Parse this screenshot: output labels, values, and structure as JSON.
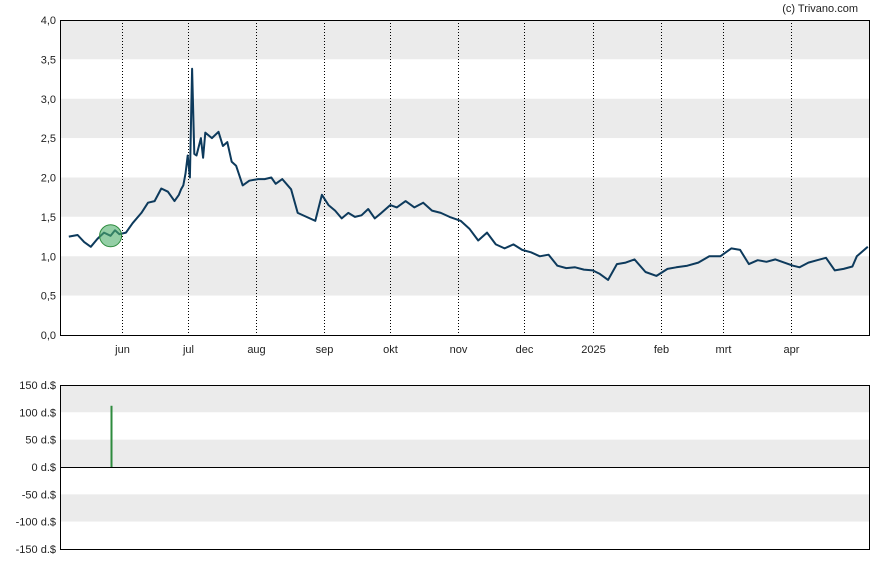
{
  "credit": "(c) Trivano.com",
  "colors": {
    "band": "#ebebeb",
    "background": "#ffffff",
    "price_line": "#0d3a5c",
    "marker_fill": "#4caf6a",
    "volume_bar": "#2e8b3e",
    "axis": "#000000",
    "vertical_grid": "#000000"
  },
  "chart_data": [
    {
      "type": "line",
      "title": "",
      "xlabel": "",
      "ylabel": "",
      "ylim": [
        0,
        4
      ],
      "y_ticks": [
        "0,0",
        "0,5",
        "1,0",
        "1,5",
        "2,0",
        "2,5",
        "3,0",
        "3,5",
        "4,0"
      ],
      "x_ticks": [
        "jun",
        "jul",
        "aug",
        "sep",
        "okt",
        "nov",
        "dec",
        "2025",
        "feb",
        "mrt",
        "apr"
      ],
      "grid": "alternating horizontal bands, dotted vertical lines at month ticks",
      "legend": "none",
      "series": [
        {
          "x": [
            "2024-05-08",
            "2024-05-12",
            "2024-05-15",
            "2024-05-18",
            "2024-05-21",
            "2024-05-24",
            "2024-05-27",
            "2024-05-29",
            "2024-05-31",
            "2024-06-03",
            "2024-06-06",
            "2024-06-10",
            "2024-06-13",
            "2024-06-16",
            "2024-06-19",
            "2024-06-22",
            "2024-06-25",
            "2024-06-27",
            "2024-06-28",
            "2024-06-29",
            "2024-06-30",
            "2024-07-01",
            "2024-07-02",
            "2024-07-03",
            "2024-07-04",
            "2024-07-05",
            "2024-07-07",
            "2024-07-08",
            "2024-07-09",
            "2024-07-12",
            "2024-07-15",
            "2024-07-17",
            "2024-07-19",
            "2024-07-21",
            "2024-07-23",
            "2024-07-26",
            "2024-07-29",
            "2024-08-02",
            "2024-08-05",
            "2024-08-08",
            "2024-08-10",
            "2024-08-13",
            "2024-08-17",
            "2024-08-20",
            "2024-08-24",
            "2024-08-28",
            "2024-08-31",
            "2024-09-03",
            "2024-09-06",
            "2024-09-09",
            "2024-09-12",
            "2024-09-15",
            "2024-09-18",
            "2024-09-21",
            "2024-09-24",
            "2024-09-27",
            "2024-10-01",
            "2024-10-04",
            "2024-10-08",
            "2024-10-12",
            "2024-10-16",
            "2024-10-20",
            "2024-10-24",
            "2024-10-28",
            "2024-11-02",
            "2024-11-06",
            "2024-11-10",
            "2024-11-14",
            "2024-11-18",
            "2024-11-22",
            "2024-11-26",
            "2024-11-30",
            "2024-12-04",
            "2024-12-08",
            "2024-12-12",
            "2024-12-16",
            "2024-12-20",
            "2024-12-24",
            "2024-12-28",
            "2025-01-01",
            "2025-01-04",
            "2025-01-08",
            "2025-01-12",
            "2025-01-16",
            "2025-01-20",
            "2025-01-25",
            "2025-01-30",
            "2025-02-04",
            "2025-02-08",
            "2025-02-13",
            "2025-02-18",
            "2025-02-23",
            "2025-02-28",
            "2025-03-05",
            "2025-03-09",
            "2025-03-13",
            "2025-03-17",
            "2025-03-21",
            "2025-03-25",
            "2025-03-29",
            "2025-04-02",
            "2025-04-05",
            "2025-04-09",
            "2025-04-13",
            "2025-04-17",
            "2025-04-21",
            "2025-04-25",
            "2025-04-29",
            "2025-05-01",
            "2025-05-06"
          ],
          "y": [
            1.25,
            1.27,
            1.18,
            1.12,
            1.22,
            1.3,
            1.26,
            1.33,
            1.28,
            1.3,
            1.42,
            1.55,
            1.68,
            1.7,
            1.86,
            1.82,
            1.7,
            1.78,
            1.85,
            1.9,
            2.05,
            2.28,
            2.0,
            3.38,
            2.3,
            2.28,
            2.5,
            2.25,
            2.57,
            2.5,
            2.58,
            2.4,
            2.45,
            2.2,
            2.15,
            1.9,
            1.96,
            1.98,
            1.98,
            2.0,
            1.92,
            1.98,
            1.85,
            1.55,
            1.5,
            1.45,
            1.78,
            1.65,
            1.58,
            1.48,
            1.55,
            1.5,
            1.52,
            1.6,
            1.48,
            1.55,
            1.65,
            1.62,
            1.7,
            1.62,
            1.68,
            1.58,
            1.55,
            1.5,
            1.45,
            1.35,
            1.2,
            1.3,
            1.15,
            1.1,
            1.15,
            1.08,
            1.05,
            1.0,
            1.02,
            0.88,
            0.85,
            0.86,
            0.83,
            0.82,
            0.78,
            0.7,
            0.9,
            0.92,
            0.96,
            0.8,
            0.75,
            0.84,
            0.86,
            0.88,
            0.92,
            1.0,
            1.0,
            1.1,
            1.08,
            0.9,
            0.95,
            0.93,
            0.96,
            0.92,
            0.88,
            0.86,
            0.92,
            0.95,
            0.98,
            0.82,
            0.84,
            0.87,
            1.0,
            1.12
          ]
        }
      ],
      "marker_date": "2024-05-27"
    },
    {
      "type": "bar",
      "title": "",
      "xlabel": "",
      "ylabel": "",
      "ylim": [
        -150,
        150
      ],
      "y_ticks": [
        "150 d.$",
        "100 d.$",
        "50 d.$",
        "0 d.$",
        "-50 d.$",
        "-100 d.$",
        "-150 d.$"
      ],
      "grid": "alternating horizontal bands",
      "legend": "none",
      "series": [
        {
          "x": [
            "2024-05-27"
          ],
          "values": [
            112
          ]
        }
      ]
    }
  ]
}
